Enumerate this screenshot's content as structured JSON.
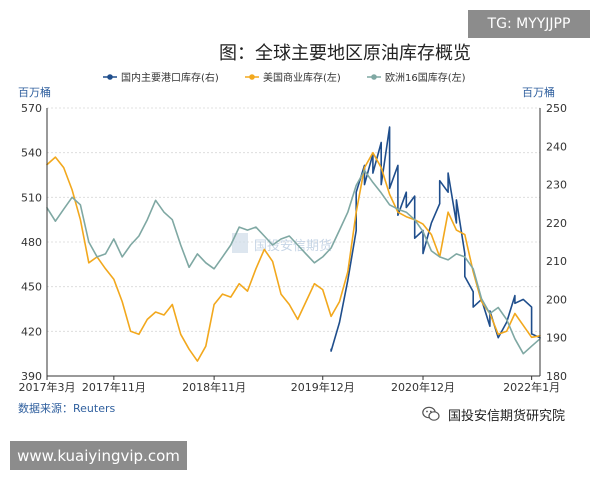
{
  "colors": {
    "domestic_port": "#1f4e8c",
    "us_commercial": "#f2a81d",
    "eu16": "#7fa8a3",
    "axis_label": "#2f5f9e",
    "grid": "#d9d9d9",
    "badge": "#8c8c8c"
  },
  "top_badge": "TG: MYYJJPP",
  "bottom_badge": "www.kuaiyingvip.com",
  "source": "数据来源：Reuters",
  "publisher": "国投安信期货研究院",
  "publisher_icon": "wechat-icon",
  "watermark": "国投安信期货",
  "chart_data": {
    "type": "line",
    "title": "图：全球主要地区原油库存概览",
    "y_left_unit": "百万桶",
    "y_right_unit": "百万桶",
    "y_left_range": [
      390,
      570
    ],
    "y_right_range": [
      180,
      250
    ],
    "y_left_ticks": [
      390,
      420,
      450,
      480,
      510,
      540,
      570
    ],
    "y_right_ticks": [
      180,
      190,
      200,
      210,
      220,
      230,
      240,
      250
    ],
    "x_range": [
      "2017-03",
      "2022-02"
    ],
    "x_tick_labels": [
      {
        "date": "2017-03",
        "label": "2017年3月"
      },
      {
        "date": "2017-11",
        "label": "2017年11月"
      },
      {
        "date": "2018-11",
        "label": "2018年11月"
      },
      {
        "date": "2019-12",
        "label": "2019年12月"
      },
      {
        "date": "2020-12",
        "label": "2020年12月"
      },
      {
        "date": "2022-01",
        "label": "2022年1月"
      }
    ],
    "legend_position": "top",
    "series": [
      {
        "name": "国内主要港口库存(右)",
        "axis": "right",
        "color": "#1f4e8c",
        "points": [
          [
            "2020-01",
            187
          ],
          [
            "2020-01",
            186.5
          ],
          [
            "2020-02",
            194
          ],
          [
            "2020-03",
            205
          ],
          [
            "2020-04",
            218
          ],
          [
            "2020-04",
            228
          ],
          [
            "2020-05",
            235
          ],
          [
            "2020-05",
            230
          ],
          [
            "2020-06",
            238
          ],
          [
            "2020-06",
            233
          ],
          [
            "2020-07",
            241
          ],
          [
            "2020-07",
            238
          ],
          [
            "2020-07",
            230
          ],
          [
            "2020-08",
            245
          ],
          [
            "2020-08",
            229
          ],
          [
            "2020-09",
            235
          ],
          [
            "2020-09",
            222
          ],
          [
            "2020-10",
            228
          ],
          [
            "2020-10",
            224
          ],
          [
            "2020-11",
            227
          ],
          [
            "2020-11",
            216
          ],
          [
            "2020-12",
            218
          ],
          [
            "2020-12",
            212
          ],
          [
            "2021-01",
            220
          ],
          [
            "2021-02",
            225
          ],
          [
            "2021-02",
            231
          ],
          [
            "2021-03",
            228
          ],
          [
            "2021-03",
            233
          ],
          [
            "2021-04",
            220
          ],
          [
            "2021-04",
            226
          ],
          [
            "2021-05",
            212
          ],
          [
            "2021-05",
            206
          ],
          [
            "2021-06",
            202
          ],
          [
            "2021-06",
            198
          ],
          [
            "2021-07",
            200
          ],
          [
            "2021-08",
            193
          ],
          [
            "2021-08",
            197
          ],
          [
            "2021-09",
            190
          ],
          [
            "2021-10",
            194
          ],
          [
            "2021-11",
            201
          ],
          [
            "2021-11",
            199
          ],
          [
            "2021-12",
            200
          ],
          [
            "2022-01",
            198
          ],
          [
            "2022-01",
            191
          ],
          [
            "2022-02",
            190
          ]
        ]
      },
      {
        "name": "美国商业库存(左)",
        "axis": "left",
        "color": "#f2a81d",
        "points": [
          [
            "2017-03",
            532
          ],
          [
            "2017-04",
            537
          ],
          [
            "2017-05",
            530
          ],
          [
            "2017-06",
            515
          ],
          [
            "2017-07",
            495
          ],
          [
            "2017-08",
            466
          ],
          [
            "2017-09",
            470
          ],
          [
            "2017-10",
            462
          ],
          [
            "2017-11",
            455
          ],
          [
            "2017-12",
            440
          ],
          [
            "2018-01",
            420
          ],
          [
            "2018-02",
            418
          ],
          [
            "2018-03",
            428
          ],
          [
            "2018-04",
            433
          ],
          [
            "2018-05",
            431
          ],
          [
            "2018-06",
            438
          ],
          [
            "2018-07",
            418
          ],
          [
            "2018-08",
            408
          ],
          [
            "2018-09",
            400
          ],
          [
            "2018-10",
            410
          ],
          [
            "2018-11",
            438
          ],
          [
            "2018-12",
            445
          ],
          [
            "2019-01",
            443
          ],
          [
            "2019-02",
            452
          ],
          [
            "2019-03",
            447
          ],
          [
            "2019-04",
            462
          ],
          [
            "2019-05",
            475
          ],
          [
            "2019-06",
            467
          ],
          [
            "2019-07",
            445
          ],
          [
            "2019-08",
            438
          ],
          [
            "2019-09",
            428
          ],
          [
            "2019-10",
            440
          ],
          [
            "2019-11",
            452
          ],
          [
            "2019-12",
            448
          ],
          [
            "2020-01",
            430
          ],
          [
            "2020-02",
            440
          ],
          [
            "2020-03",
            460
          ],
          [
            "2020-04",
            500
          ],
          [
            "2020-05",
            530
          ],
          [
            "2020-06",
            540
          ],
          [
            "2020-07",
            530
          ],
          [
            "2020-08",
            512
          ],
          [
            "2020-09",
            500
          ],
          [
            "2020-10",
            497
          ],
          [
            "2020-11",
            495
          ],
          [
            "2020-12",
            492
          ],
          [
            "2021-01",
            485
          ],
          [
            "2021-02",
            470
          ],
          [
            "2021-03",
            500
          ],
          [
            "2021-04",
            488
          ],
          [
            "2021-05",
            485
          ],
          [
            "2021-06",
            460
          ],
          [
            "2021-07",
            440
          ],
          [
            "2021-08",
            432
          ],
          [
            "2021-09",
            418
          ],
          [
            "2021-10",
            420
          ],
          [
            "2021-11",
            432
          ],
          [
            "2021-12",
            424
          ],
          [
            "2022-01",
            416
          ],
          [
            "2022-02",
            417
          ]
        ]
      },
      {
        "name": "欧洲16国库存(左)",
        "axis": "left",
        "color": "#7fa8a3",
        "points": [
          [
            "2017-03",
            503
          ],
          [
            "2017-04",
            494
          ],
          [
            "2017-05",
            502
          ],
          [
            "2017-06",
            510
          ],
          [
            "2017-07",
            505
          ],
          [
            "2017-08",
            480
          ],
          [
            "2017-09",
            470
          ],
          [
            "2017-10",
            472
          ],
          [
            "2017-11",
            482
          ],
          [
            "2017-12",
            470
          ],
          [
            "2018-01",
            478
          ],
          [
            "2018-02",
            484
          ],
          [
            "2018-03",
            495
          ],
          [
            "2018-04",
            508
          ],
          [
            "2018-05",
            500
          ],
          [
            "2018-06",
            495
          ],
          [
            "2018-07",
            478
          ],
          [
            "2018-08",
            463
          ],
          [
            "2018-09",
            472
          ],
          [
            "2018-10",
            466
          ],
          [
            "2018-11",
            462
          ],
          [
            "2018-12",
            470
          ],
          [
            "2019-01",
            478
          ],
          [
            "2019-02",
            490
          ],
          [
            "2019-03",
            488
          ],
          [
            "2019-04",
            490
          ],
          [
            "2019-05",
            484
          ],
          [
            "2019-06",
            478
          ],
          [
            "2019-07",
            482
          ],
          [
            "2019-08",
            484
          ],
          [
            "2019-09",
            478
          ],
          [
            "2019-10",
            472
          ],
          [
            "2019-11",
            466
          ],
          [
            "2019-12",
            470
          ],
          [
            "2020-01",
            476
          ],
          [
            "2020-02",
            488
          ],
          [
            "2020-03",
            500
          ],
          [
            "2020-04",
            518
          ],
          [
            "2020-05",
            528
          ],
          [
            "2020-06",
            520
          ],
          [
            "2020-07",
            513
          ],
          [
            "2020-08",
            505
          ],
          [
            "2020-09",
            502
          ],
          [
            "2020-10",
            500
          ],
          [
            "2020-11",
            495
          ],
          [
            "2020-12",
            487
          ],
          [
            "2021-01",
            474
          ],
          [
            "2021-02",
            470
          ],
          [
            "2021-03",
            468
          ],
          [
            "2021-04",
            472
          ],
          [
            "2021-05",
            470
          ],
          [
            "2021-06",
            462
          ],
          [
            "2021-07",
            442
          ],
          [
            "2021-08",
            432
          ],
          [
            "2021-09",
            436
          ],
          [
            "2021-10",
            428
          ],
          [
            "2021-11",
            415
          ],
          [
            "2021-12",
            405
          ],
          [
            "2022-01",
            410
          ],
          [
            "2022-02",
            415
          ]
        ]
      }
    ]
  }
}
